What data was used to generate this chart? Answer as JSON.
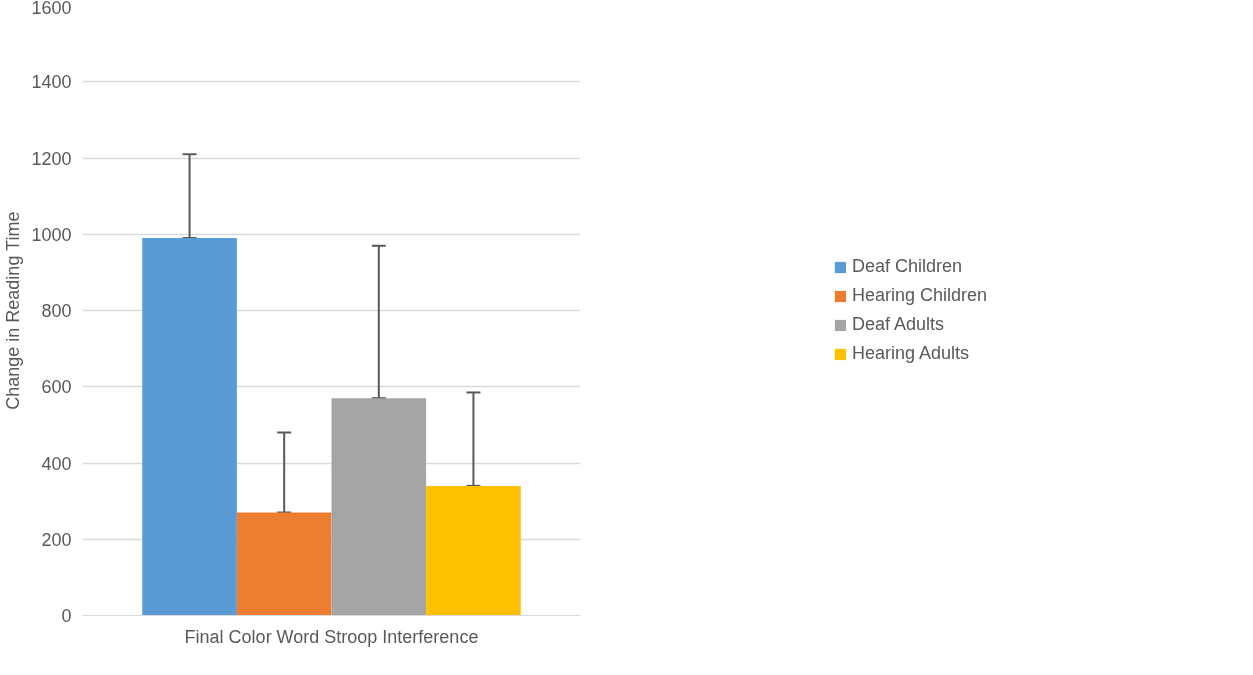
{
  "chart_data": {
    "type": "bar",
    "ylabel": "Change in Reading Time",
    "categories": [
      "Final Color Word Stroop Interference"
    ],
    "series": [
      {
        "name": "Deaf Children",
        "color": "#5b9bd5",
        "values": [
          990
        ],
        "errors": [
          [
            990,
            1210
          ]
        ]
      },
      {
        "name": "Hearing Children",
        "color": "#ed7d31",
        "values": [
          270
        ],
        "errors": [
          [
            270,
            480
          ]
        ]
      },
      {
        "name": "Deaf Adults",
        "color": "#a5a5a5",
        "values": [
          570
        ],
        "errors": [
          [
            570,
            970
          ]
        ]
      },
      {
        "name": "Hearing Adults",
        "color": "#ffc000",
        "values": [
          340
        ],
        "errors": [
          [
            340,
            585
          ]
        ]
      }
    ],
    "ylim": [
      0,
      1600
    ],
    "yticks": [
      0,
      200,
      400,
      600,
      800,
      1000,
      1200,
      1400,
      1600
    ],
    "grid": "y",
    "legend": "right"
  }
}
